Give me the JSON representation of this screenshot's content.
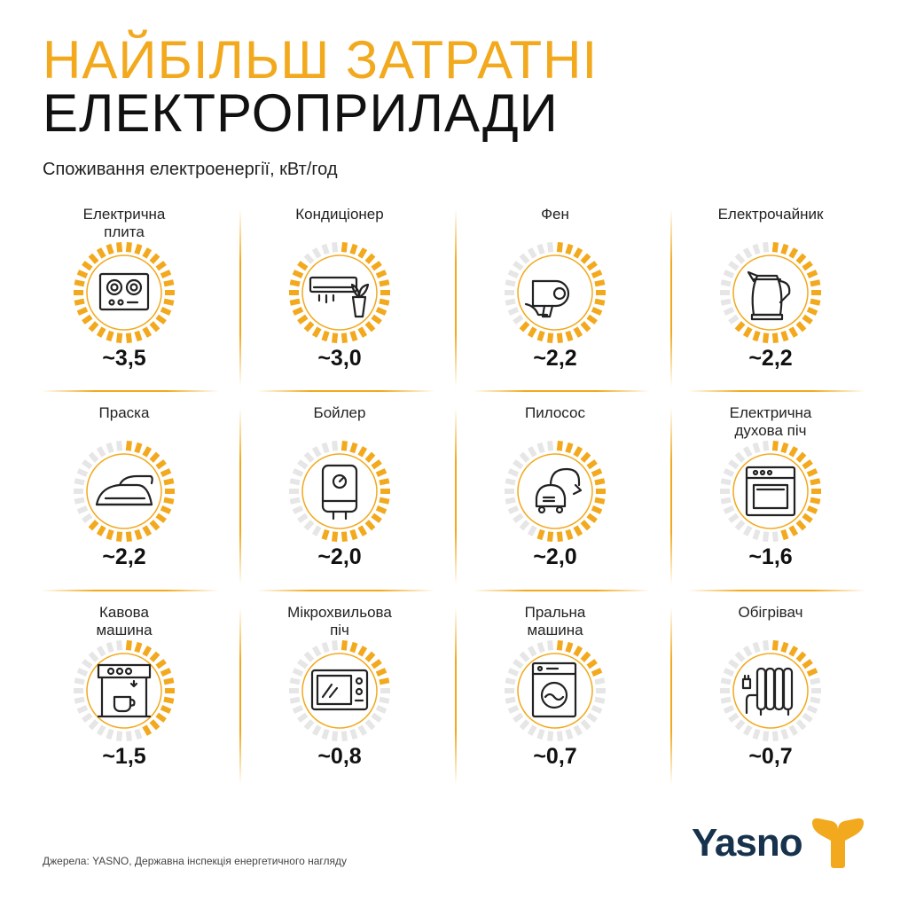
{
  "header": {
    "title_line1": "НАЙБІЛЬШ ЗАТРАТНІ",
    "title_line2": "ЕЛЕКТРОПРИЛАДИ",
    "subtitle": "Споживання електроенергії, кВт/год"
  },
  "colors": {
    "accent": "#f2a91e",
    "track": "#e6e6e6",
    "text": "#111111",
    "logo": "#17324d"
  },
  "chart_data": {
    "type": "radial-gauge-grid",
    "title": "НАЙБІЛЬШ ЗАТРАТНІ ЕЛЕКТРОПРИЛАДИ",
    "subtitle": "Споживання електроенергії, кВт/год",
    "max": 3.5,
    "items": [
      {
        "label": [
          "Електрична",
          "плита"
        ],
        "value_label": "~3,5",
        "value": 3.5,
        "icon": "stove-icon"
      },
      {
        "label": [
          "Кондиціонер"
        ],
        "value_label": "~3,0",
        "value": 3.0,
        "icon": "air-conditioner-icon"
      },
      {
        "label": [
          "Фен"
        ],
        "value_label": "~2,2",
        "value": 2.2,
        "icon": "hair-dryer-icon"
      },
      {
        "label": [
          "Електрочайник"
        ],
        "value_label": "~2,2",
        "value": 2.2,
        "icon": "kettle-icon"
      },
      {
        "label": [
          "Праска"
        ],
        "value_label": "~2,2",
        "value": 2.2,
        "icon": "iron-icon"
      },
      {
        "label": [
          "Бойлер"
        ],
        "value_label": "~2,0",
        "value": 2.0,
        "icon": "water-heater-icon"
      },
      {
        "label": [
          "Пилосос"
        ],
        "value_label": "~2,0",
        "value": 2.0,
        "icon": "vacuum-cleaner-icon"
      },
      {
        "label": [
          "Електрична",
          "духова піч"
        ],
        "value_label": "~1,6",
        "value": 1.6,
        "icon": "oven-icon"
      },
      {
        "label": [
          "Кавова",
          "машина"
        ],
        "value_label": "~1,5",
        "value": 1.5,
        "icon": "coffee-machine-icon"
      },
      {
        "label": [
          "Мікрохвильова",
          "піч"
        ],
        "value_label": "~0,8",
        "value": 0.8,
        "icon": "microwave-icon"
      },
      {
        "label": [
          "Пральна",
          "машина"
        ],
        "value_label": "~0,7",
        "value": 0.7,
        "icon": "washing-machine-icon"
      },
      {
        "label": [
          "Обігрівач"
        ],
        "value_label": "~0,7",
        "value": 0.7,
        "icon": "oil-heater-icon"
      }
    ]
  },
  "footer": {
    "source": "Джерела: YASNO, Державна інспекція енергетичного нагляду",
    "logo_text": "Yasno"
  }
}
